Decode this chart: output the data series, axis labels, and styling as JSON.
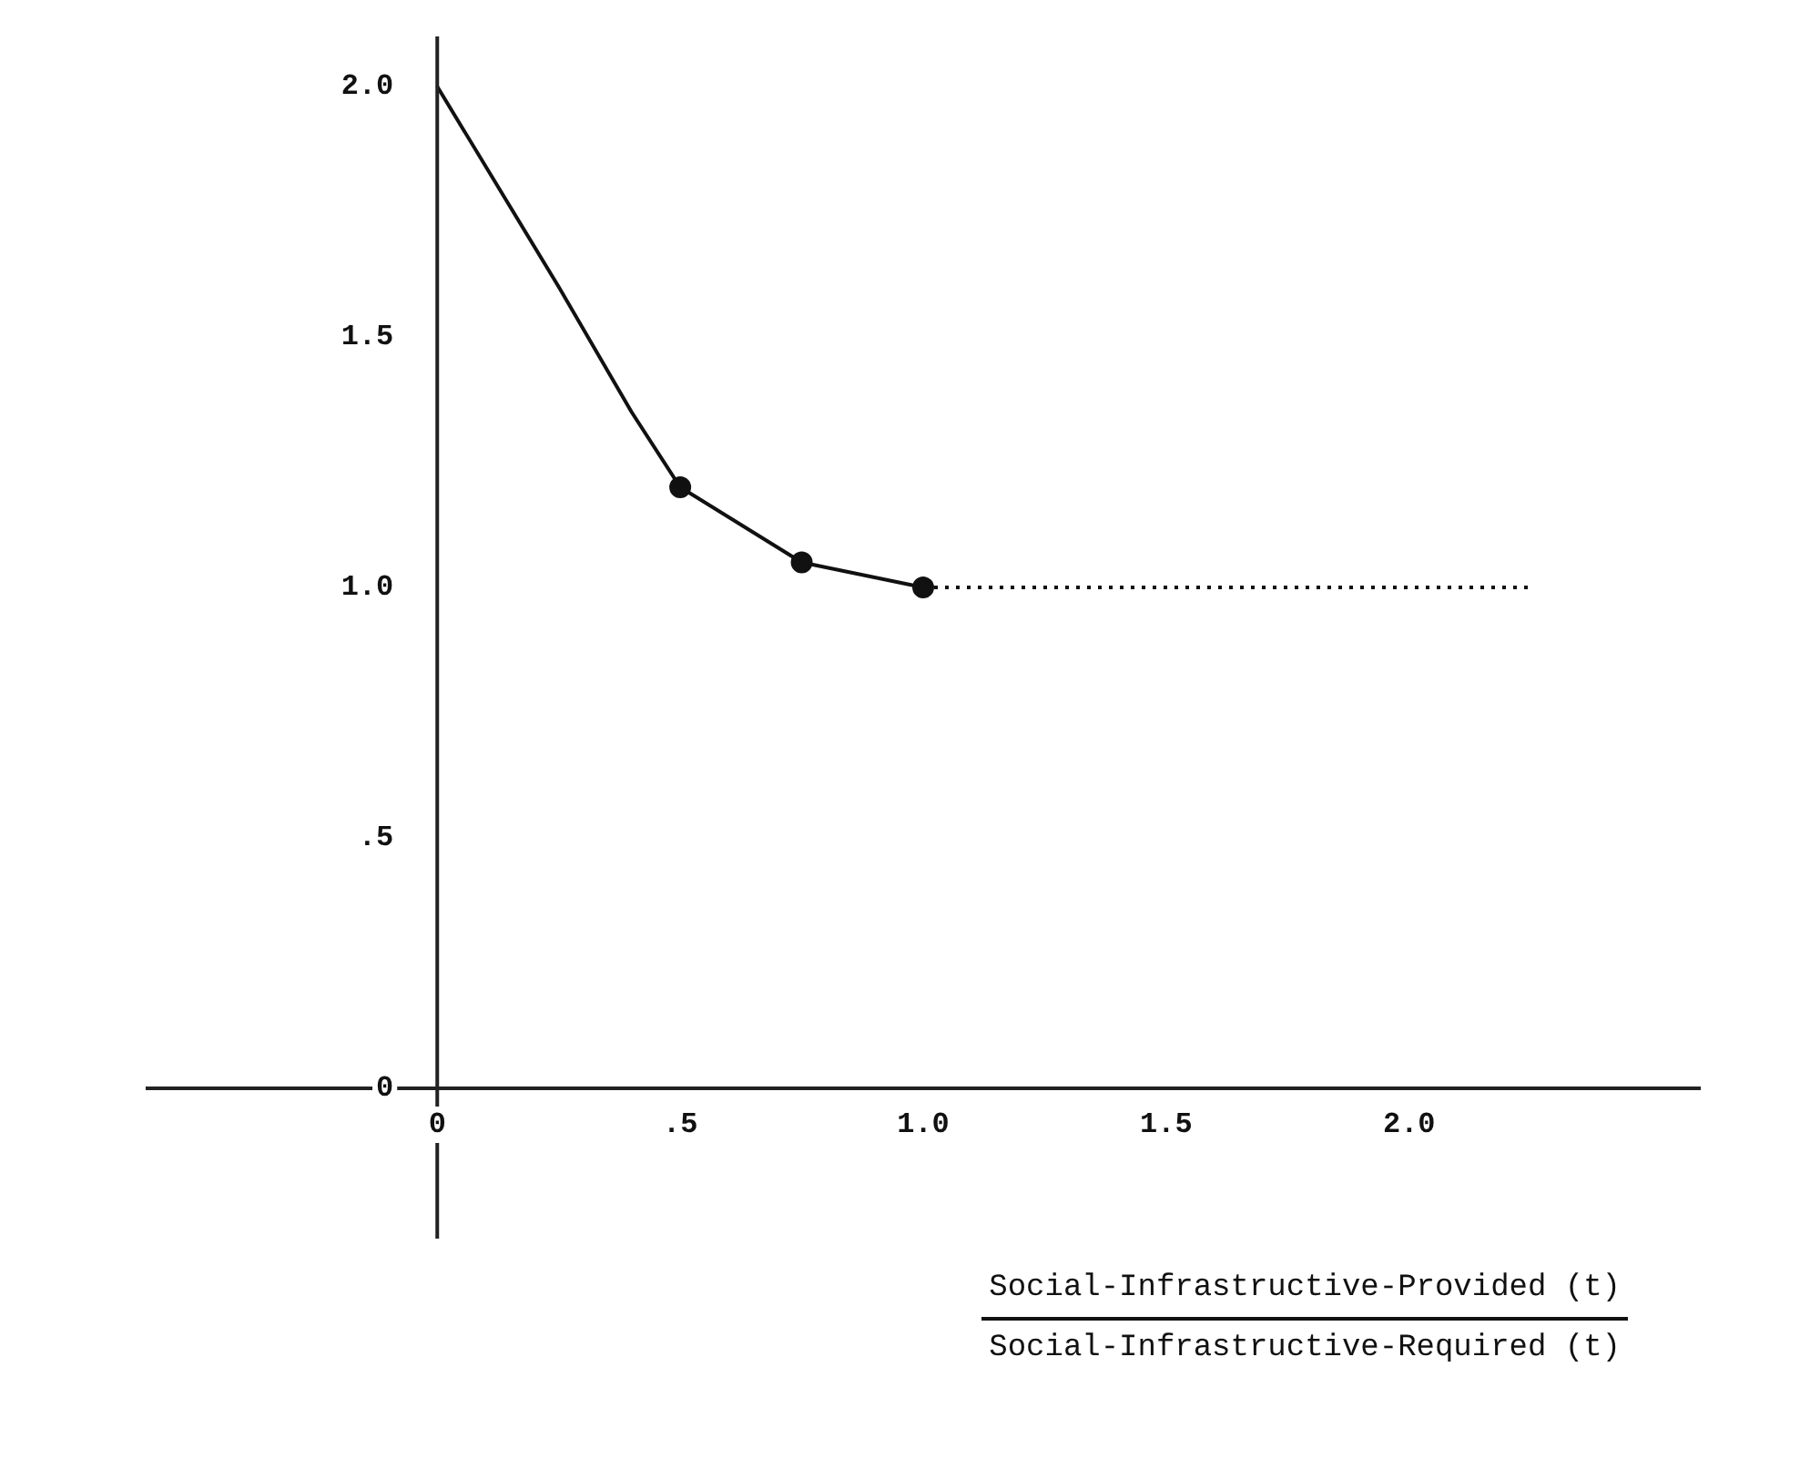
{
  "chart_data": {
    "type": "line",
    "xlabel": "Social-Infrastructive-Provided (t)",
    "annotations": [
      "Social-Infrastructive-Required (t)"
    ],
    "xlim": [
      -0.6,
      2.6
    ],
    "ylim": [
      -0.3,
      2.1
    ],
    "xticks": [
      0,
      {
        "value": 0.5,
        "label": ".5"
      },
      {
        "value": 1,
        "label": "1.0"
      },
      {
        "value": 1.5,
        "label": "1.5"
      },
      {
        "value": 2,
        "label": "2.0"
      }
    ],
    "yticks": [
      0,
      {
        "value": 0.5,
        "label": ".5"
      },
      {
        "value": 1,
        "label": "1.0"
      },
      {
        "value": 1.5,
        "label": "1.5"
      },
      {
        "value": 2,
        "label": "2.0"
      }
    ],
    "grid": false,
    "legend": false,
    "series": [
      {
        "color": "#111111",
        "marker": "none",
        "line_style": "solid",
        "x": [
          0,
          0.25,
          0.4,
          0.5,
          0.75,
          1.0
        ],
        "values": [
          2.0,
          1.6,
          1.35,
          1.2,
          1.05,
          1.0
        ]
      },
      {
        "type": "scatter",
        "color": "#111111",
        "marker": "circle",
        "x": [
          0.5,
          0.75,
          1.0
        ],
        "values": [
          1.2,
          1.05,
          1.0
        ]
      },
      {
        "color": "#111111",
        "marker": "none",
        "line_style": "dotted",
        "x": [
          1.0,
          2.25
        ],
        "values": [
          1.0,
          1.0
        ]
      }
    ]
  }
}
